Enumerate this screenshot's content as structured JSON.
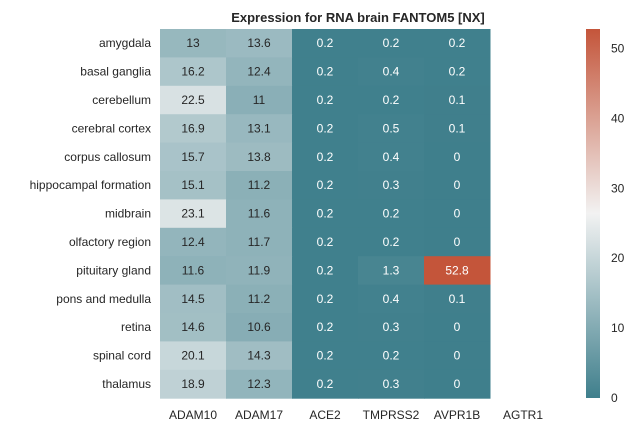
{
  "chart_data": {
    "type": "heatmap",
    "title": "Expression for RNA brain FANTOM5 [NX]",
    "rows": [
      "amygdala",
      "basal ganglia",
      "cerebellum",
      "cerebral cortex",
      "corpus callosum",
      "hippocampal formation",
      "midbrain",
      "olfactory region",
      "pituitary gland",
      "pons and medulla",
      "retina",
      "spinal cord",
      "thalamus"
    ],
    "columns": [
      "ADAM10",
      "ADAM17",
      "ACE2",
      "TMPRSS2",
      "AVPR1B",
      "AGTR1"
    ],
    "values": [
      [
        13,
        13.6,
        0.2,
        0.2,
        0.2,
        null
      ],
      [
        16.2,
        12.4,
        0.2,
        0.4,
        0.2,
        null
      ],
      [
        22.5,
        11,
        0.2,
        0.2,
        0.1,
        null
      ],
      [
        16.9,
        13.1,
        0.2,
        0.5,
        0.1,
        null
      ],
      [
        15.7,
        13.8,
        0.2,
        0.4,
        0,
        null
      ],
      [
        15.1,
        11.2,
        0.2,
        0.3,
        0,
        null
      ],
      [
        23.1,
        11.6,
        0.2,
        0.2,
        0,
        null
      ],
      [
        12.4,
        11.7,
        0.2,
        0.2,
        0,
        null
      ],
      [
        11.6,
        11.9,
        0.2,
        1.3,
        52.8,
        null
      ],
      [
        14.5,
        11.2,
        0.2,
        0.4,
        0.1,
        null
      ],
      [
        14.6,
        10.6,
        0.2,
        0.3,
        0,
        null
      ],
      [
        20.1,
        14.3,
        0.2,
        0.2,
        0,
        null
      ],
      [
        18.9,
        12.3,
        0.2,
        0.3,
        0,
        null
      ]
    ],
    "vmin": 0,
    "vmax": 52.8,
    "colorbar_ticks": [
      0,
      10,
      20,
      30,
      40,
      50
    ],
    "colormap": {
      "low": "#3f7f8c",
      "mid": "#f2f2f2",
      "high": "#c4553a"
    }
  }
}
